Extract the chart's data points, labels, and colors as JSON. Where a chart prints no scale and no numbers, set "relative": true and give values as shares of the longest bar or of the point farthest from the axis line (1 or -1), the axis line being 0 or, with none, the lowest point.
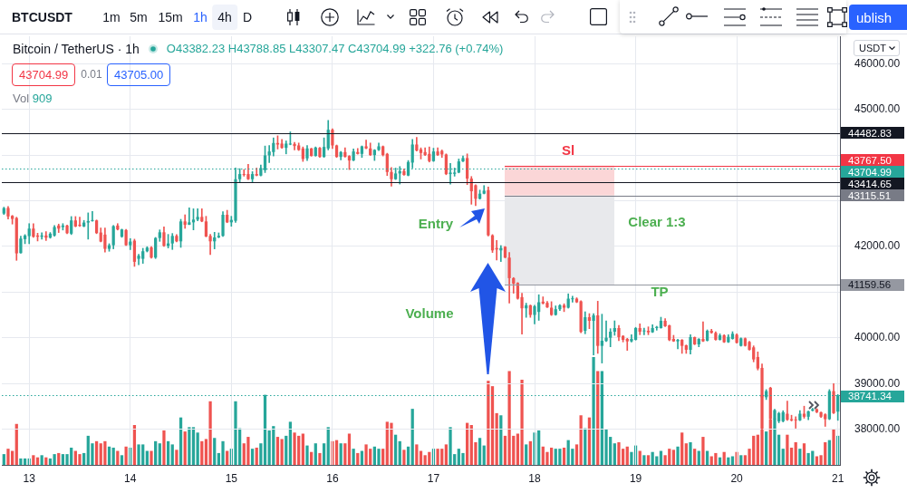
{
  "chart_data": [
    {
      "type": "candlestick",
      "title": "Bitcoin / TetherUS · 1h",
      "subtitle": "O43382.23 H43788.85 L43307.47 C43704.99 +322.76 (+0.74%)",
      "categories": [
        null,
        null,
        null,
        null,
        null,
        null,
        "13",
        null,
        null,
        null,
        null,
        null,
        null,
        null,
        null,
        null,
        null,
        null,
        null,
        null,
        null,
        null,
        null,
        null,
        null,
        null,
        null,
        null,
        null,
        null,
        "14",
        null,
        null,
        null,
        null,
        null,
        null,
        null,
        null,
        null,
        null,
        null,
        null,
        null,
        null,
        null,
        null,
        null,
        null,
        null,
        null,
        null,
        null,
        null,
        "15",
        null,
        null,
        null,
        null,
        null,
        null,
        null,
        null,
        null,
        null,
        null,
        null,
        null,
        null,
        null,
        null,
        null,
        null,
        null,
        null,
        null,
        null,
        null,
        "16",
        null,
        null,
        null,
        null,
        null,
        null,
        null,
        null,
        null,
        null,
        null,
        null,
        null,
        null,
        null,
        null,
        null,
        null,
        null,
        null,
        null,
        null,
        null,
        "17",
        null,
        null,
        null,
        null,
        null,
        null,
        null,
        null,
        null,
        null,
        null,
        null,
        null,
        null,
        null,
        null,
        null,
        null,
        null,
        null,
        null,
        null,
        null,
        "18",
        null,
        null,
        null,
        null,
        null,
        null,
        null,
        null,
        null,
        null,
        null,
        null,
        null,
        null,
        null,
        null,
        null,
        null,
        null,
        null,
        null,
        null,
        null,
        "19",
        null,
        null,
        null,
        null,
        null,
        null,
        null,
        null,
        null,
        null,
        null,
        null,
        null,
        null,
        null,
        null,
        null,
        null,
        null,
        null,
        null,
        null,
        null,
        "20",
        null,
        null,
        null,
        null,
        null,
        null,
        null,
        null,
        null,
        null,
        null,
        null,
        null,
        null,
        null,
        null,
        null,
        null,
        null,
        null,
        null,
        null,
        null,
        "21"
      ],
      "ohlc": [
        [
          42720,
          42860,
          42700,
          42840
        ],
        [
          42842,
          42875,
          42603,
          42657
        ],
        [
          42670,
          42680,
          42490,
          42603
        ],
        [
          42623,
          42640,
          41696,
          41849
        ],
        [
          41855,
          42226,
          41850,
          42173
        ],
        [
          42160,
          42260,
          42060,
          42240
        ],
        [
          42226,
          42500,
          42060,
          42391
        ],
        [
          42391,
          42500,
          42200,
          42213
        ],
        [
          42240,
          42290,
          42120,
          42213
        ],
        [
          42213,
          42300,
          42160,
          42240
        ],
        [
          42240,
          42325,
          42130,
          42193
        ],
        [
          42193,
          42305,
          42180,
          42280
        ],
        [
          42240,
          42460,
          42225,
          42425
        ],
        [
          42458,
          42490,
          42305,
          42391
        ],
        [
          42425,
          42500,
          42360,
          42458
        ],
        [
          42458,
          42470,
          42280,
          42290
        ],
        [
          42280,
          42655,
          42260,
          42570
        ],
        [
          42570,
          42655,
          42430,
          42437
        ],
        [
          42477,
          42640,
          42437,
          42450
        ],
        [
          42437,
          42570,
          42430,
          42523
        ],
        [
          42523,
          42735,
          42160,
          42557
        ],
        [
          42557,
          42768,
          42550,
          42570
        ],
        [
          42570,
          42580,
          42280,
          42292
        ],
        [
          42305,
          42405,
          42100,
          42107
        ],
        [
          42260,
          42405,
          41875,
          41948
        ],
        [
          41948,
          42060,
          41895,
          42027
        ],
        [
          42027,
          42460,
          41948,
          42445
        ],
        [
          42458,
          42500,
          42360,
          42372
        ],
        [
          42213,
          42380,
          42200,
          42372
        ],
        [
          42360,
          42372,
          42020,
          42027
        ],
        [
          42027,
          42173,
          41930,
          42107
        ],
        [
          42127,
          42160,
          41564,
          41664
        ],
        [
          41730,
          41830,
          41600,
          41797
        ],
        [
          41730,
          41960,
          41630,
          41895
        ],
        [
          41895,
          41995,
          41880,
          41974
        ],
        [
          41980,
          42000,
          41743,
          41756
        ],
        [
          41756,
          42198,
          41736,
          42185
        ],
        [
          42185,
          42363,
          42112,
          42310
        ],
        [
          42310,
          42429,
          42000,
          42013
        ],
        [
          42013,
          42264,
          41967,
          42066
        ],
        [
          42066,
          42284,
          41934,
          42231
        ],
        [
          42231,
          42258,
          42099,
          42112
        ],
        [
          42112,
          42594,
          41980,
          42548
        ],
        [
          42548,
          42693,
          42396,
          42475
        ],
        [
          42475,
          42845,
          42475,
          42528
        ],
        [
          42528,
          42825,
          42363,
          42588
        ],
        [
          42588,
          42825,
          42561,
          42647
        ],
        [
          42647,
          42825,
          42540,
          42548
        ],
        [
          42548,
          42660,
          42210,
          42218
        ],
        [
          42231,
          42264,
          41822,
          42112
        ],
        [
          42112,
          42310,
          41947,
          42198
        ],
        [
          42198,
          42297,
          42190,
          42231
        ],
        [
          42231,
          42759,
          42218,
          42693
        ],
        [
          42693,
          42792,
          42520,
          42528
        ],
        [
          42528,
          42660,
          42442,
          42581
        ],
        [
          42561,
          43716,
          42528,
          43472
        ],
        [
          43472,
          43703,
          43406,
          43584
        ],
        [
          43584,
          43683,
          43538,
          43564
        ],
        [
          43584,
          43795,
          43465,
          43472
        ],
        [
          43472,
          43637,
          43406,
          43584
        ],
        [
          43584,
          43716,
          43545,
          43551
        ],
        [
          43551,
          43782,
          43545,
          43716
        ],
        [
          43670,
          44198,
          43617,
          43993
        ],
        [
          43993,
          44211,
          43835,
          44079
        ],
        [
          44066,
          44376,
          43980,
          44264
        ],
        [
          44264,
          44422,
          44132,
          44231
        ],
        [
          44251,
          44343,
          44150,
          44158
        ],
        [
          44158,
          44310,
          44026,
          44251
        ],
        [
          44231,
          44508,
          44224,
          44251
        ],
        [
          44244,
          44277,
          44112,
          44198
        ],
        [
          44211,
          44264,
          44100,
          44112
        ],
        [
          44145,
          44178,
          43861,
          43914
        ],
        [
          43927,
          44211,
          43881,
          44145
        ],
        [
          44145,
          44150,
          43975,
          43980
        ],
        [
          43980,
          44178,
          43975,
          44165
        ],
        [
          44158,
          44170,
          43950,
          43960
        ],
        [
          43960,
          44376,
          43950,
          44178
        ],
        [
          44145,
          44759,
          44112,
          44554
        ],
        [
          44554,
          44574,
          44145,
          44211
        ],
        [
          44211,
          44220,
          43947,
          43960
        ],
        [
          43960,
          44080,
          43894,
          44066
        ],
        [
          44066,
          44158,
          43955,
          43960
        ],
        [
          43980,
          43990,
          43683,
          43881
        ],
        [
          43881,
          44132,
          43875,
          44079
        ],
        [
          44066,
          44145,
          44020,
          44026
        ],
        [
          44026,
          44200,
          43947,
          44191
        ],
        [
          44191,
          44330,
          44140,
          44145
        ],
        [
          44145,
          44264,
          43990,
          44000
        ],
        [
          44000,
          44120,
          43881,
          44112
        ],
        [
          44112,
          44264,
          44100,
          44191
        ],
        [
          44191,
          44200,
          43980,
          44000
        ],
        [
          44026,
          44040,
          43551,
          43630
        ],
        [
          43630,
          43729,
          43320,
          43472
        ],
        [
          43472,
          43716,
          43465,
          43597
        ],
        [
          43597,
          43749,
          43366,
          43650
        ],
        [
          43650,
          43696,
          43560,
          43564
        ],
        [
          43551,
          43881,
          43545,
          43848
        ],
        [
          43835,
          44343,
          43716,
          44231
        ],
        [
          44231,
          44389,
          44090,
          44099
        ],
        [
          44125,
          44158,
          43914,
          44046
        ],
        [
          44066,
          44158,
          43990,
          44000
        ],
        [
          44026,
          44178,
          43848,
          43868
        ],
        [
          43868,
          44150,
          43860,
          44079
        ],
        [
          44079,
          44158,
          43990,
          44000
        ],
        [
          44092,
          44112,
          43947,
          44013
        ],
        [
          44013,
          44026,
          43570,
          43584
        ],
        [
          43584,
          43815,
          43366,
          43617
        ],
        [
          43590,
          43716,
          43538,
          43617
        ],
        [
          43617,
          43914,
          43610,
          43861
        ],
        [
          43861,
          43980,
          43855,
          43934
        ],
        [
          43934,
          44026,
          43353,
          43485
        ],
        [
          43485,
          43531,
          42924,
          43208
        ],
        [
          43340,
          43350,
          42891,
          43043
        ],
        [
          43043,
          43234,
          43035,
          43155
        ],
        [
          43155,
          43333,
          43150,
          43221
        ],
        [
          43234,
          43300,
          42230,
          42244
        ],
        [
          42244,
          42260,
          41868,
          41914
        ],
        [
          41967,
          42132,
          41703,
          41934
        ],
        [
          41914,
          42020,
          41670,
          41967
        ],
        [
          41993,
          42000,
          41750,
          41756
        ],
        [
          41756,
          41868,
          40759,
          41307
        ],
        [
          41307,
          41320,
          40977,
          41188
        ],
        [
          41200,
          41210,
          40845,
          40858
        ],
        [
          40891,
          40977,
          40080,
          40647
        ],
        [
          40647,
          40759,
          40449,
          40713
        ],
        [
          40713,
          40720,
          40449,
          40502
        ],
        [
          40502,
          40713,
          40304,
          40693
        ],
        [
          40568,
          40944,
          40383,
          40779
        ],
        [
          40792,
          40898,
          40740,
          40753
        ],
        [
          40766,
          40800,
          40660,
          40667
        ],
        [
          40660,
          40792,
          40490,
          40502
        ],
        [
          40502,
          40700,
          40495,
          40627
        ],
        [
          40627,
          40730,
          40600,
          40713
        ],
        [
          40713,
          40746,
          40574,
          40660
        ],
        [
          40660,
          40964,
          40650,
          40858
        ],
        [
          40845,
          40911,
          40780,
          40865
        ],
        [
          40858,
          40878,
          40770,
          40779
        ],
        [
          40800,
          40812,
          40110,
          40130
        ],
        [
          40155,
          40571,
          40089,
          40452
        ],
        [
          40452,
          40531,
          40201,
          40373
        ],
        [
          40373,
          40531,
          39627,
          40492
        ],
        [
          40492,
          40802,
          39660,
          39825
        ],
        [
          39825,
          40518,
          39449,
          39937
        ],
        [
          39930,
          40373,
          39920,
          40003
        ],
        [
          40003,
          40201,
          39805,
          40135
        ],
        [
          40135,
          40373,
          40056,
          40215
        ],
        [
          40215,
          40274,
          39937,
          40016
        ],
        [
          40043,
          40050,
          39911,
          39957
        ],
        [
          39977,
          39990,
          39726,
          39924
        ],
        [
          39924,
          40069,
          39911,
          39977
        ],
        [
          39957,
          40230,
          39950,
          40215
        ],
        [
          40215,
          40307,
          40069,
          40135
        ],
        [
          40142,
          40215,
          40069,
          40155
        ],
        [
          40155,
          40241,
          40069,
          40122
        ],
        [
          40122,
          40287,
          40115,
          40215
        ],
        [
          40215,
          40254,
          40168,
          40241
        ],
        [
          40215,
          40452,
          40210,
          40373
        ],
        [
          40373,
          40419,
          40248,
          40254
        ],
        [
          40274,
          40280,
          39937,
          39950
        ],
        [
          39977,
          40056,
          39920,
          39924
        ],
        [
          39924,
          39970,
          39759,
          39957
        ],
        [
          39957,
          39965,
          39660,
          39825
        ],
        [
          39838,
          39845,
          39660,
          39739
        ],
        [
          39739,
          40069,
          39647,
          40016
        ],
        [
          40016,
          40020,
          39850,
          39858
        ],
        [
          39858,
          39985,
          39805,
          39977
        ],
        [
          39977,
          40353,
          39918,
          39924
        ],
        [
          39938,
          40175,
          39930,
          40155
        ],
        [
          40155,
          40188,
          40100,
          40109
        ],
        [
          40109,
          40135,
          39950,
          39957
        ],
        [
          39957,
          40089,
          39950,
          40056
        ],
        [
          40056,
          40069,
          39898,
          39904
        ],
        [
          39904,
          40069,
          39898,
          40023
        ],
        [
          39977,
          40135,
          39970,
          40089
        ],
        [
          40069,
          40089,
          39885,
          39891
        ],
        [
          39825,
          40000,
          39818,
          39990
        ],
        [
          39990,
          40000,
          39818,
          39825
        ],
        [
          39911,
          39924,
          39730,
          39739
        ],
        [
          39792,
          39825,
          39475,
          39528
        ],
        [
          39581,
          39693,
          39297,
          39330
        ],
        [
          39343,
          39429,
          37800,
          38700
        ],
        [
          38700,
          38868,
          38650,
          38835
        ],
        [
          38908,
          38920,
          38150,
          38221
        ],
        [
          38221,
          38439,
          38200,
          38419
        ],
        [
          38175,
          38373,
          38142,
          38353
        ],
        [
          38175,
          38406,
          38160,
          38373
        ],
        [
          38340,
          38617,
          38195,
          38208
        ],
        [
          38221,
          38307,
          38180,
          38195
        ],
        [
          38208,
          38274,
          38023,
          38195
        ],
        [
          38195,
          38406,
          38190,
          38340
        ],
        [
          38340,
          38505,
          38241,
          38274
        ],
        [
          38274,
          38400,
          38210,
          38393
        ],
        [
          38406,
          38459,
          38400,
          38439
        ],
        [
          38439,
          38450,
          38360,
          38373
        ],
        [
          38373,
          38380,
          38260,
          38274
        ],
        [
          38327,
          38340,
          38063,
          38221
        ],
        [
          38221,
          38868,
          38210,
          38835
        ],
        [
          38835,
          39000,
          38340,
          38353
        ],
        [
          38386,
          38760,
          38195,
          38741.34
        ]
      ],
      "colors": [
        "#26a69a",
        "#ef5350",
        "#ef5350",
        "#ef5350",
        "#26a69a",
        "#26a69a",
        "#26a69a",
        "#ef5350",
        "#ef5350",
        "#26a69a",
        "#ef5350",
        "#26a69a",
        "#26a69a",
        "#ef5350",
        "#26a69a",
        "#ef5350",
        "#26a69a",
        "#ef5350",
        "#ef5350",
        "#26a69a",
        "#26a69a",
        "#26a69a",
        "#ef5350",
        "#ef5350",
        "#ef5350",
        "#26a69a",
        "#26a69a",
        "#ef5350",
        "#26a69a",
        "#ef5350",
        "#26a69a",
        "#ef5350",
        "#26a69a",
        "#26a69a",
        "#26a69a",
        "#ef5350",
        "#26a69a",
        "#26a69a",
        "#ef5350",
        "#26a69a",
        "#26a69a",
        "#ef5350",
        "#26a69a",
        "#ef5350",
        "#26a69a",
        "#26a69a",
        "#26a69a",
        "#ef5350",
        "#ef5350",
        "#ef5350",
        "#26a69a",
        "#26a69a",
        "#26a69a",
        "#ef5350",
        "#26a69a",
        "#26a69a",
        "#26a69a",
        "#ef5350",
        "#ef5350",
        "#26a69a",
        "#ef5350",
        "#26a69a",
        "#26a69a",
        "#26a69a",
        "#26a69a",
        "#ef5350",
        "#ef5350",
        "#26a69a",
        "#26a69a",
        "#ef5350",
        "#ef5350",
        "#ef5350",
        "#26a69a",
        "#ef5350",
        "#26a69a",
        "#ef5350",
        "#26a69a",
        "#26a69a",
        "#ef5350",
        "#ef5350",
        "#26a69a",
        "#ef5350",
        "#ef5350",
        "#26a69a",
        "#ef5350",
        "#26a69a",
        "#ef5350",
        "#ef5350",
        "#26a69a",
        "#26a69a",
        "#ef5350",
        "#ef5350",
        "#ef5350",
        "#26a69a",
        "#26a69a",
        "#ef5350",
        "#26a69a",
        "#26a69a",
        "#ef5350",
        "#ef5350",
        "#ef5350",
        "#ef5350",
        "#26a69a",
        "#ef5350",
        "#ef5350",
        "#ef5350",
        "#26a69a",
        "#26a69a",
        "#26a69a",
        "#26a69a",
        "#ef5350",
        "#ef5350",
        "#ef5350",
        "#26a69a",
        "#26a69a",
        "#ef5350",
        "#ef5350",
        "#ef5350",
        "#26a69a",
        "#ef5350",
        "#ef5350",
        "#ef5350",
        "#ef5350",
        "#ef5350",
        "#26a69a",
        "#ef5350",
        "#26a69a",
        "#26a69a",
        "#ef5350",
        "#ef5350",
        "#ef5350",
        "#26a69a",
        "#26a69a",
        "#ef5350",
        "#26a69a",
        "#26a69a",
        "#ef5350",
        "#ef5350",
        "#26a69a",
        "#ef5350",
        "#26a69a",
        "#ef5350",
        "#26a69a",
        "#26a69a",
        "#26a69a",
        "#26a69a",
        "#ef5350",
        "#ef5350",
        "#ef5350",
        "#26a69a",
        "#26a69a",
        "#ef5350",
        "#26a69a",
        "#ef5350",
        "#26a69a",
        "#26a69a",
        "#26a69a",
        "#ef5350",
        "#ef5350",
        "#ef5350",
        "#26a69a",
        "#ef5350",
        "#ef5350",
        "#26a69a",
        "#ef5350",
        "#26a69a",
        "#ef5350",
        "#26a69a",
        "#ef5350",
        "#ef5350",
        "#26a69a",
        "#ef5350",
        "#26a69a",
        "#26a69a",
        "#ef5350",
        "#26a69a",
        "#ef5350",
        "#ef5350",
        "#ef5350",
        "#ef5350",
        "#ef5350",
        "#26a69a",
        "#ef5350",
        "#26a69a",
        "#26a69a",
        "#26a69a",
        "#ef5350",
        "#ef5350",
        "#ef5350",
        "#26a69a",
        "#ef5350",
        "#26a69a",
        "#26a69a",
        "#ef5350",
        "#ef5350",
        "#ef5350",
        "#26a69a",
        "#ef5350",
        "#26a69a"
      ],
      "ylim": [
        37220,
        46600
      ],
      "yticks": [
        {
          "value": 38000,
          "label": "38000.00"
        },
        {
          "value": 39000,
          "label": "39000.00"
        },
        {
          "value": 40000,
          "label": "40000.00"
        },
        {
          "value": 41000,
          "label": null
        },
        {
          "value": 42000,
          "label": "42000.00"
        },
        {
          "value": 43000,
          "label": null
        },
        {
          "value": 44000,
          "label": null
        },
        {
          "value": 45000,
          "label": "45000.00"
        },
        {
          "value": 46000,
          "label": "46000.00"
        }
      ],
      "grid": true,
      "ref_lines": [
        {
          "axis": "y",
          "value": 44482.83,
          "label": "44482.83",
          "color": "#131722",
          "line_style": "solid"
        },
        {
          "axis": "y",
          "value": 43767.5,
          "label": "43767.50",
          "color": "#f23645",
          "line_style": "solid"
        },
        {
          "axis": "y",
          "value": 43704.99,
          "label": "43704.99",
          "color": "#26a69a",
          "line_style": "dotted"
        },
        {
          "axis": "y",
          "value": 43414.65,
          "label": "43414.65",
          "color": "#131722",
          "line_style": "solid"
        },
        {
          "axis": "y",
          "value": 43115.51,
          "label": "43115.51",
          "color": "#787b86",
          "line_style": "solid"
        },
        {
          "axis": "y",
          "value": 41159.56,
          "label": "41159.56",
          "color": "#9598a1",
          "line_style": "solid"
        },
        {
          "axis": "y",
          "value": 38741.34,
          "label": "38741.34",
          "color": "#26a69a",
          "line_style": "dotted"
        }
      ],
      "bands": [
        {
          "axis": "y",
          "from": 43115.51,
          "to": 43767.5,
          "label": "Sl",
          "color": "#fbd6d7"
        },
        {
          "axis": "y",
          "from": 41159.56,
          "to": 43115.51,
          "label": "TP",
          "color": "#e8e9ec"
        }
      ],
      "annotations": [
        "BTCUSDT",
        "1m",
        "5m",
        "15m",
        "1h",
        "4h",
        "D",
        "ublish",
        "USDT",
        "43704.99",
        "0.01",
        "43705.00",
        "Entry",
        "Clear 1:3",
        "Volume"
      ]
    },
    {
      "type": "bar",
      "title": "Vol 909",
      "relative": true,
      "tick_labels": false,
      "categories": [
        null,
        null,
        null,
        null,
        null,
        null,
        "13",
        null,
        null,
        null,
        null,
        null,
        null,
        null,
        null,
        null,
        null,
        null,
        null,
        null,
        null,
        null,
        null,
        null,
        null,
        null,
        null,
        null,
        null,
        null,
        "14",
        null,
        null,
        null,
        null,
        null,
        null,
        null,
        null,
        null,
        null,
        null,
        null,
        null,
        null,
        null,
        null,
        null,
        null,
        null,
        null,
        null,
        null,
        null,
        "15",
        null,
        null,
        null,
        null,
        null,
        null,
        null,
        null,
        null,
        null,
        null,
        null,
        null,
        null,
        null,
        null,
        null,
        null,
        null,
        null,
        null,
        null,
        null,
        "16",
        null,
        null,
        null,
        null,
        null,
        null,
        null,
        null,
        null,
        null,
        null,
        null,
        null,
        null,
        null,
        null,
        null,
        null,
        null,
        null,
        null,
        null,
        null,
        "17",
        null,
        null,
        null,
        null,
        null,
        null,
        null,
        null,
        null,
        null,
        null,
        null,
        null,
        null,
        null,
        null,
        null,
        null,
        null,
        null,
        null,
        null,
        null,
        "18",
        null,
        null,
        null,
        null,
        null,
        null,
        null,
        null,
        null,
        null,
        null,
        null,
        null,
        null,
        null,
        null,
        null,
        null,
        null,
        null,
        null,
        null,
        null,
        "19",
        null,
        null,
        null,
        null,
        null,
        null,
        null,
        null,
        null,
        null,
        null,
        null,
        null,
        null,
        null,
        null,
        null,
        null,
        null,
        null,
        null,
        null,
        null,
        "20",
        null,
        null,
        null,
        null,
        null,
        null,
        null,
        null,
        null,
        null,
        null,
        null,
        null,
        null,
        null,
        null,
        null,
        null,
        null,
        null,
        null,
        null,
        null,
        "21"
      ],
      "values": [
        0.1,
        0.15,
        0.13,
        0.38,
        0.06,
        0.06,
        0.06,
        0.09,
        0.07,
        0.09,
        0.07,
        0.06,
        0.1,
        0.11,
        0.1,
        0.1,
        0.16,
        0.13,
        0.1,
        0.11,
        0.27,
        0.2,
        0.22,
        0.2,
        0.22,
        0.17,
        0.16,
        0.13,
        0.09,
        0.17,
        0.16,
        0.37,
        0.19,
        0.19,
        0.13,
        0.13,
        0.22,
        0.2,
        0.32,
        0.22,
        0.19,
        0.14,
        0.44,
        0.31,
        0.35,
        0.35,
        0.3,
        0.22,
        0.24,
        0.59,
        0.25,
        0.11,
        0.22,
        0.13,
        0.15,
        0.59,
        0.34,
        0.2,
        0.26,
        0.15,
        0.16,
        0.2,
        0.65,
        0.32,
        0.36,
        0.26,
        0.24,
        0.27,
        0.4,
        0.3,
        0.27,
        0.29,
        0.18,
        0.12,
        0.2,
        0.11,
        0.2,
        0.35,
        0.22,
        0.23,
        0.2,
        0.2,
        0.29,
        0.15,
        0.11,
        0.13,
        0.19,
        0.15,
        0.17,
        0.15,
        0.15,
        0.4,
        0.39,
        0.28,
        0.22,
        0.14,
        0.17,
        0.52,
        0.19,
        0.13,
        0.09,
        0.12,
        0.15,
        0.15,
        0.15,
        0.19,
        0.35,
        0.1,
        0.15,
        0.11,
        0.39,
        0.37,
        0.21,
        0.25,
        0.18,
        0.78,
        0.73,
        0.48,
        0.46,
        0.27,
        0.87,
        0.27,
        0.29,
        0.79,
        0.19,
        0.22,
        0.3,
        0.32,
        0.17,
        0.12,
        0.16,
        0.15,
        0.15,
        0.16,
        0.23,
        0.15,
        0.19,
        0.46,
        0.34,
        0.44,
        1,
        0.87,
        0.87,
        0.33,
        0.26,
        0.2,
        0.21,
        0.15,
        0.17,
        0.12,
        0.18,
        0.13,
        0.09,
        0.09,
        0.12,
        0.08,
        0.13,
        0.09,
        0.15,
        0.14,
        0.17,
        0.3,
        0.2,
        0.21,
        0.15,
        0.13,
        0.26,
        0.13,
        0.08,
        0.11,
        0.07,
        0.12,
        0.07,
        0.08,
        0.12,
        0.09,
        0.09,
        0.15,
        0.27,
        0.28,
        0.65,
        0.31,
        0.42,
        0.43,
        0.28,
        0.15,
        0.28,
        0.16,
        0.21,
        0.15,
        0.2,
        0.11,
        0.13,
        0.08,
        0.09,
        0.21,
        0.23,
        0.33,
        0.27
      ],
      "colors": [
        "#26a69a",
        "#ef5350",
        "#ef5350",
        "#ef5350",
        "#26a69a",
        "#26a69a",
        "#26a69a",
        "#ef5350",
        "#ef5350",
        "#26a69a",
        "#ef5350",
        "#26a69a",
        "#26a69a",
        "#ef5350",
        "#26a69a",
        "#26a69a",
        "#26a69a",
        "#ef5350",
        "#ef5350",
        "#26a69a",
        "#26a69a",
        "#26a69a",
        "#ef5350",
        "#ef5350",
        "#ef5350",
        "#26a69a",
        "#26a69a",
        "#ef5350",
        "#26a69a",
        "#ef5350",
        "#26a69a",
        "#ef5350",
        "#26a69a",
        "#26a69a",
        "#26a69a",
        "#ef5350",
        "#26a69a",
        "#26a69a",
        "#ef5350",
        "#26a69a",
        "#26a69a",
        "#ef5350",
        "#26a69a",
        "#ef5350",
        "#26a69a",
        "#26a69a",
        "#26a69a",
        "#ef5350",
        "#ef5350",
        "#ef5350",
        "#26a69a",
        "#26a69a",
        "#26a69a",
        "#ef5350",
        "#26a69a",
        "#26a69a",
        "#26a69a",
        "#ef5350",
        "#ef5350",
        "#26a69a",
        "#ef5350",
        "#26a69a",
        "#26a69a",
        "#26a69a",
        "#26a69a",
        "#ef5350",
        "#ef5350",
        "#26a69a",
        "#26a69a",
        "#ef5350",
        "#ef5350",
        "#ef5350",
        "#26a69a",
        "#ef5350",
        "#26a69a",
        "#ef5350",
        "#26a69a",
        "#26a69a",
        "#ef5350",
        "#ef5350",
        "#26a69a",
        "#ef5350",
        "#ef5350",
        "#26a69a",
        "#ef5350",
        "#26a69a",
        "#ef5350",
        "#ef5350",
        "#26a69a",
        "#26a69a",
        "#ef5350",
        "#ef5350",
        "#ef5350",
        "#26a69a",
        "#26a69a",
        "#ef5350",
        "#26a69a",
        "#26a69a",
        "#ef5350",
        "#ef5350",
        "#ef5350",
        "#ef5350",
        "#26a69a",
        "#ef5350",
        "#ef5350",
        "#ef5350",
        "#26a69a",
        "#26a69a",
        "#26a69a",
        "#26a69a",
        "#ef5350",
        "#ef5350",
        "#ef5350",
        "#26a69a",
        "#26a69a",
        "#ef5350",
        "#ef5350",
        "#ef5350",
        "#26a69a",
        "#ef5350",
        "#ef5350",
        "#ef5350",
        "#ef5350",
        "#ef5350",
        "#26a69a",
        "#ef5350",
        "#26a69a",
        "#26a69a",
        "#ef5350",
        "#ef5350",
        "#ef5350",
        "#26a69a",
        "#26a69a",
        "#ef5350",
        "#26a69a",
        "#26a69a",
        "#ef5350",
        "#ef5350",
        "#26a69a",
        "#ef5350",
        "#26a69a",
        "#ef5350",
        "#26a69a",
        "#26a69a",
        "#26a69a",
        "#26a69a",
        "#ef5350",
        "#ef5350",
        "#ef5350",
        "#26a69a",
        "#26a69a",
        "#ef5350",
        "#26a69a",
        "#ef5350",
        "#26a69a",
        "#26a69a",
        "#26a69a",
        "#ef5350",
        "#ef5350",
        "#ef5350",
        "#26a69a",
        "#ef5350",
        "#ef5350",
        "#26a69a",
        "#ef5350",
        "#26a69a",
        "#ef5350",
        "#26a69a",
        "#ef5350",
        "#ef5350",
        "#26a69a",
        "#ef5350",
        "#26a69a",
        "#26a69a",
        "#ef5350",
        "#26a69a",
        "#ef5350",
        "#ef5350",
        "#ef5350",
        "#ef5350",
        "#ef5350",
        "#26a69a",
        "#ef5350",
        "#26a69a",
        "#26a69a",
        "#26a69a",
        "#ef5350",
        "#ef5350",
        "#ef5350",
        "#26a69a",
        "#ef5350",
        "#26a69a",
        "#26a69a",
        "#ef5350",
        "#ef5350",
        "#ef5350",
        "#26a69a",
        "#ef5350",
        "#26a69a"
      ]
    }
  ]
}
